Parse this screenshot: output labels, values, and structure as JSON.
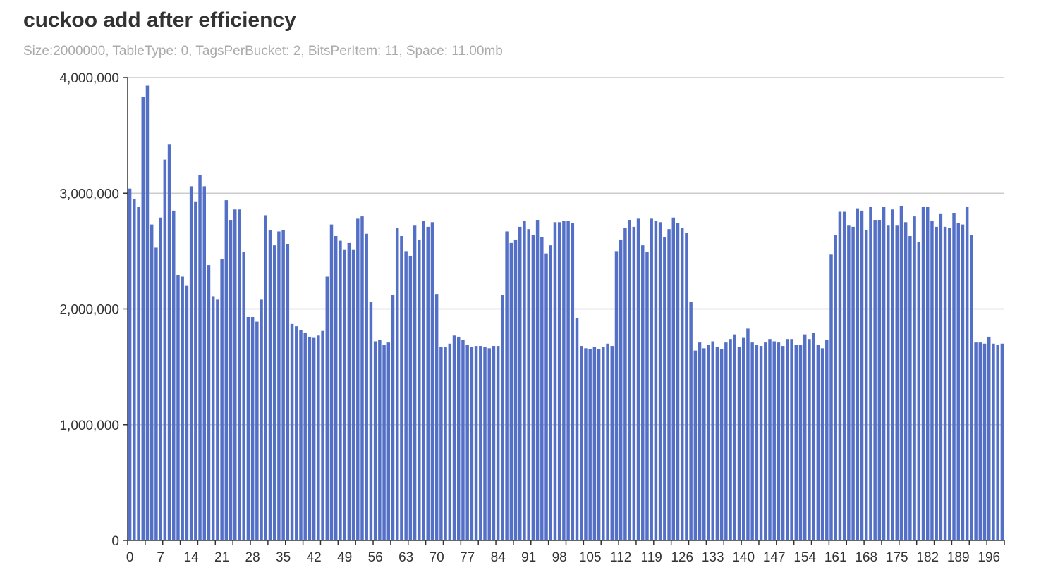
{
  "chart_data": {
    "type": "bar",
    "title": "cuckoo add after efficiency",
    "subtitle": "Size:2000000, TableType: 0, TagsPerBucket: 2, BitsPerItem: 11, Space: 11.00mb",
    "xlabel": "",
    "ylabel": "",
    "ylim": [
      0,
      4000000
    ],
    "yticks": [
      0,
      1000000,
      2000000,
      3000000,
      4000000
    ],
    "ytick_labels": [
      "0",
      "1,000,000",
      "2,000,000",
      "3,000,000",
      "4,000,000"
    ],
    "xtick_labels": [
      "0",
      "7",
      "14",
      "21",
      "28",
      "35",
      "42",
      "49",
      "56",
      "63",
      "70",
      "77",
      "84",
      "91",
      "98",
      "105",
      "112",
      "119",
      "126",
      "133",
      "140",
      "147",
      "154",
      "161",
      "168",
      "175",
      "182",
      "189",
      "196"
    ],
    "grid": true,
    "bar_color": "#5470c6",
    "categories": [
      0,
      1,
      2,
      3,
      4,
      5,
      6,
      7,
      8,
      9,
      10,
      11,
      12,
      13,
      14,
      15,
      16,
      17,
      18,
      19,
      20,
      21,
      22,
      23,
      24,
      25,
      26,
      27,
      28,
      29,
      30,
      31,
      32,
      33,
      34,
      35,
      36,
      37,
      38,
      39,
      40,
      41,
      42,
      43,
      44,
      45,
      46,
      47,
      48,
      49,
      50,
      51,
      52,
      53,
      54,
      55,
      56,
      57,
      58,
      59,
      60,
      61,
      62,
      63,
      64,
      65,
      66,
      67,
      68,
      69,
      70,
      71,
      72,
      73,
      74,
      75,
      76,
      77,
      78,
      79,
      80,
      81,
      82,
      83,
      84,
      85,
      86,
      87,
      88,
      89,
      90,
      91,
      92,
      93,
      94,
      95,
      96,
      97,
      98,
      99,
      100,
      101,
      102,
      103,
      104,
      105,
      106,
      107,
      108,
      109,
      110,
      111,
      112,
      113,
      114,
      115,
      116,
      117,
      118,
      119,
      120,
      121,
      122,
      123,
      124,
      125,
      126,
      127,
      128,
      129,
      130,
      131,
      132,
      133,
      134,
      135,
      136,
      137,
      138,
      139,
      140,
      141,
      142,
      143,
      144,
      145,
      146,
      147,
      148,
      149,
      150,
      151,
      152,
      153,
      154,
      155,
      156,
      157,
      158,
      159,
      160,
      161,
      162,
      163,
      164,
      165,
      166,
      167,
      168,
      169,
      170,
      171,
      172,
      173,
      174,
      175,
      176,
      177,
      178,
      179,
      180,
      181,
      182,
      183,
      184,
      185,
      186,
      187,
      188,
      189,
      190,
      191,
      192,
      193,
      194,
      195,
      196,
      197,
      198,
      199
    ],
    "values": [
      3040000,
      2950000,
      2880000,
      3830000,
      3930000,
      2730000,
      2530000,
      2790000,
      3290000,
      3420000,
      2850000,
      2290000,
      2280000,
      2200000,
      3060000,
      2930000,
      3160000,
      3060000,
      2380000,
      2110000,
      2080000,
      2430000,
      2940000,
      2770000,
      2860000,
      2860000,
      2490000,
      1930000,
      1930000,
      1890000,
      2080000,
      2810000,
      2680000,
      2550000,
      2670000,
      2680000,
      2560000,
      1870000,
      1850000,
      1820000,
      1790000,
      1760000,
      1750000,
      1770000,
      1810000,
      2280000,
      2730000,
      2630000,
      2590000,
      2510000,
      2570000,
      2510000,
      2780000,
      2800000,
      2650000,
      2060000,
      1720000,
      1730000,
      1690000,
      1710000,
      2120000,
      2700000,
      2630000,
      2500000,
      2460000,
      2720000,
      2600000,
      2760000,
      2710000,
      2750000,
      2130000,
      1670000,
      1670000,
      1700000,
      1770000,
      1760000,
      1730000,
      1690000,
      1670000,
      1680000,
      1680000,
      1670000,
      1660000,
      1680000,
      1680000,
      2120000,
      2670000,
      2570000,
      2600000,
      2710000,
      2760000,
      2690000,
      2640000,
      2770000,
      2620000,
      2480000,
      2550000,
      2750000,
      2750000,
      2760000,
      2760000,
      2740000,
      1920000,
      1680000,
      1660000,
      1650000,
      1670000,
      1650000,
      1670000,
      1700000,
      1680000,
      2500000,
      2600000,
      2700000,
      2770000,
      2710000,
      2780000,
      2550000,
      2490000,
      2780000,
      2760000,
      2750000,
      2620000,
      2690000,
      2790000,
      2740000,
      2700000,
      2660000,
      2060000,
      1640000,
      1710000,
      1660000,
      1690000,
      1720000,
      1670000,
      1650000,
      1710000,
      1740000,
      1780000,
      1670000,
      1750000,
      1830000,
      1710000,
      1690000,
      1680000,
      1710000,
      1740000,
      1720000,
      1710000,
      1680000,
      1740000,
      1740000,
      1690000,
      1690000,
      1780000,
      1740000,
      1790000,
      1690000,
      1660000,
      1730000,
      2470000,
      2640000,
      2840000,
      2840000,
      2720000,
      2710000,
      2870000,
      2850000,
      2680000,
      2880000,
      2770000,
      2770000,
      2880000,
      2720000,
      2860000,
      2720000,
      2890000,
      2750000,
      2630000,
      2800000,
      2580000,
      2880000,
      2880000,
      2760000,
      2710000,
      2820000,
      2710000,
      2700000,
      2830000,
      2740000,
      2730000,
      2880000,
      2640000,
      1710000,
      1710000,
      1700000,
      1760000,
      1700000,
      1690000,
      1700000
    ]
  }
}
